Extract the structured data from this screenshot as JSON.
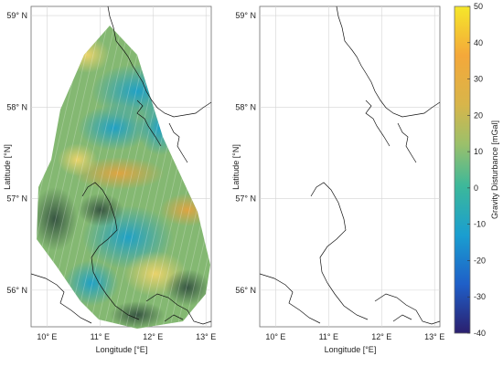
{
  "chart_data": [
    {
      "type": "heatmap",
      "panel": "left",
      "title": "",
      "xlabel": "Longitude [°E]",
      "ylabel": "Latitude [°N]",
      "xlim": [
        9.7,
        13.1
      ],
      "ylim": [
        55.6,
        59.1
      ],
      "x_ticks": [
        10,
        11,
        12,
        13
      ],
      "x_tick_labels": [
        "10° E",
        "11° E",
        "12° E",
        "13° E"
      ],
      "y_ticks": [
        56,
        57,
        58,
        59
      ],
      "y_tick_labels": [
        "56° N",
        "57° N",
        "58° N",
        "59° N"
      ],
      "grid": true,
      "coastline": true,
      "coverage": "dense survey tracks covering a diamond-shaped region",
      "value_range": [
        -40,
        50
      ]
    },
    {
      "type": "heatmap",
      "panel": "right",
      "title": "",
      "xlabel": "Longitude [°E]",
      "ylabel": "Latitude [°N]",
      "xlim": [
        9.7,
        13.1
      ],
      "ylim": [
        55.6,
        59.1
      ],
      "x_ticks": [
        10,
        11,
        12,
        13
      ],
      "x_tick_labels": [
        "10° E",
        "11° E",
        "12° E",
        "13° E"
      ],
      "y_ticks": [
        56,
        57,
        58,
        59
      ],
      "y_tick_labels": [
        "56° N",
        "57° N",
        "58° N",
        "59° N"
      ],
      "grid": true,
      "coastline": true,
      "coverage": "sparse survey strips",
      "value_range": [
        -40,
        50
      ]
    }
  ],
  "colorbar": {
    "label": "Gravity Disturbance [mGal]",
    "min": -40,
    "max": 50,
    "ticks": [
      50,
      40,
      30,
      20,
      10,
      0,
      -10,
      -20,
      -30,
      -40
    ],
    "tick_labels": [
      "50",
      "40",
      "30",
      "20",
      "10",
      "0",
      "-10",
      "-20",
      "-30",
      "-40"
    ],
    "colormap": [
      "#2b1f6e",
      "#1f5fc8",
      "#1a9ed0",
      "#3cb89a",
      "#9cc06a",
      "#d8b54a",
      "#f4a83a",
      "#f5e72a"
    ],
    "placement": "right"
  }
}
